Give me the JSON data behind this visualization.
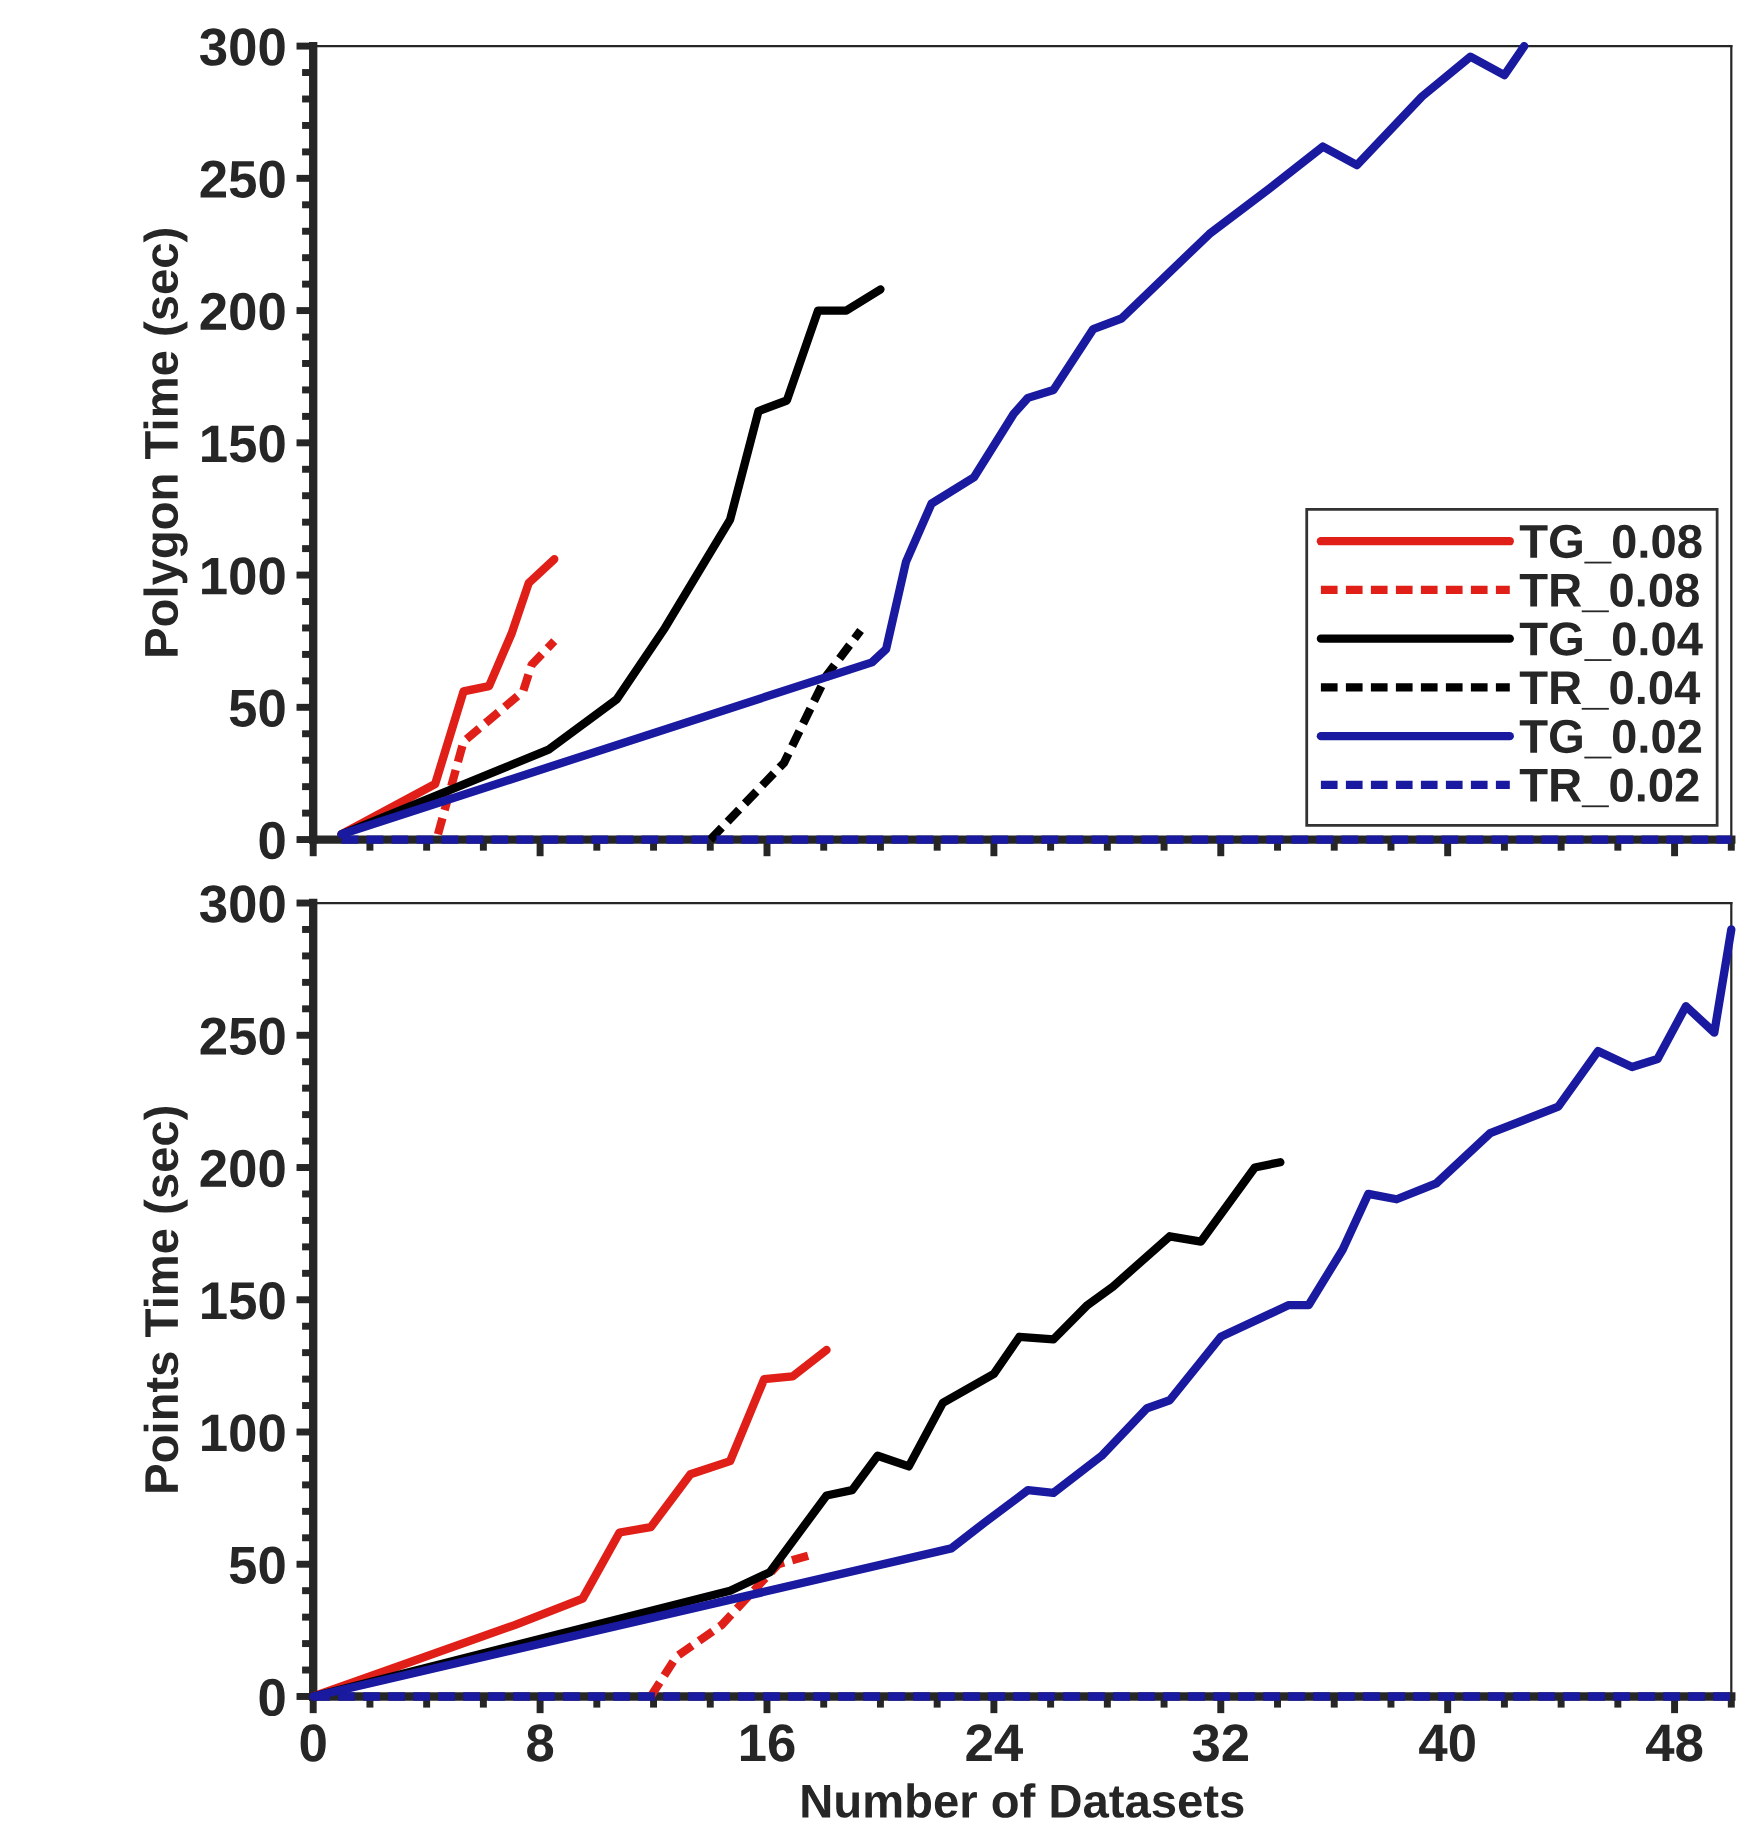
{
  "chart_data": [
    {
      "type": "line",
      "ylabel": "Polygon Time (sec)",
      "xlim": [
        0,
        50
      ],
      "ylim": [
        0,
        300
      ],
      "xticks": [
        0,
        8,
        16,
        24,
        32,
        40,
        48
      ],
      "yticks": [
        0,
        50,
        100,
        150,
        200,
        250,
        300
      ],
      "tick_labels": "y",
      "legend": "bottom right",
      "grid": false,
      "series": [
        {
          "name": "TG_0.08",
          "color": "#e02018",
          "line_style": "solid",
          "x": [
            1,
            4.3,
            5.3,
            6.2,
            7,
            7.6,
            8.5
          ],
          "values": [
            2,
            21,
            56,
            58,
            78,
            97,
            106
          ]
        },
        {
          "name": "TR_0.08",
          "color": "#e02018",
          "line_style": "dashed",
          "x": [
            4.4,
            5.3,
            7.4,
            7.7,
            8.5
          ],
          "values": [
            2,
            37,
            56,
            66,
            75
          ]
        },
        {
          "name": "TG_0.04",
          "color": "#000000",
          "line_style": "solid",
          "x": [
            1,
            8.3,
            10.7,
            12.4,
            14.7,
            15.7,
            16.7,
            17.8,
            18.8,
            20
          ],
          "values": [
            2,
            34,
            53,
            80,
            121,
            162,
            166,
            200,
            200,
            208
          ]
        },
        {
          "name": "TR_0.04",
          "color": "#000000",
          "line_style": "dashed",
          "x": [
            14,
            16.6,
            18.1,
            19.3
          ],
          "values": [
            0,
            29,
            62,
            79
          ]
        },
        {
          "name": "TG_0.02",
          "color": "#1a1aa0",
          "line_style": "solid",
          "x": [
            1,
            19.7,
            20.2,
            20.9,
            21.8,
            23.3,
            24.7,
            25.2,
            26.1,
            27.5,
            28.5,
            31.6,
            33.7,
            35.6,
            36.8,
            39.1,
            40.8,
            42,
            42.7
          ],
          "values": [
            2,
            67,
            72,
            105,
            127,
            137,
            161,
            167,
            170,
            193,
            197,
            229,
            246,
            262,
            255,
            281,
            296,
            289,
            300
          ]
        },
        {
          "name": "TR_0.02",
          "color": "#1a1aa0",
          "line_style": "dashed",
          "x": [
            1,
            50
          ],
          "values": [
            0,
            0
          ]
        }
      ]
    },
    {
      "type": "line",
      "xlabel": "Number of Datasets",
      "ylabel": "Points Time (sec)",
      "xlim": [
        0,
        50
      ],
      "ylim": [
        0,
        300
      ],
      "xticks": [
        0,
        8,
        16,
        24,
        32,
        40,
        48
      ],
      "yticks": [
        0,
        50,
        100,
        150,
        200,
        250,
        300
      ],
      "grid": false,
      "series": [
        {
          "color": "#e02018",
          "line_style": "solid",
          "x": [
            0,
            7.1,
            9.5,
            10.8,
            11.9,
            13.3,
            14.7,
            15.9,
            16.9,
            18.1
          ],
          "values": [
            0,
            27,
            37,
            62,
            64,
            84,
            89,
            120,
            121,
            131
          ]
        },
        {
          "color": "#e02018",
          "line_style": "dashed",
          "x": [
            11.9,
            12.8,
            14.4,
            16.4,
            17.7
          ],
          "values": [
            0,
            15,
            27,
            50,
            54
          ]
        },
        {
          "color": "#000000",
          "line_style": "solid",
          "x": [
            0,
            14.7,
            16.1,
            18.1,
            19,
            19.9,
            21,
            22.2,
            24,
            24.9,
            26.1,
            27.3,
            28.2,
            30.2,
            31.3,
            33.2,
            34.1
          ],
          "values": [
            0,
            40,
            47,
            76,
            78,
            91,
            87,
            111,
            122,
            136,
            135,
            148,
            155,
            174,
            172,
            200,
            202
          ]
        },
        {
          "color": "#1a1aa0",
          "line_style": "solid",
          "x": [
            0,
            22.5,
            23.7,
            25.2,
            26.1,
            27.8,
            29.4,
            30.2,
            32,
            34.4,
            35.1,
            36.3,
            37.2,
            38.2,
            39.6,
            41.5,
            43.9,
            45.3,
            46.5,
            47.4,
            48.4,
            49.4,
            50
          ],
          "values": [
            0,
            56,
            66,
            78,
            77,
            91,
            109,
            112,
            136,
            148,
            148,
            169,
            190,
            188,
            194,
            213,
            223,
            244,
            238,
            241,
            261,
            251,
            290
          ]
        },
        {
          "color": "#1a1aa0",
          "line_style": "dashed",
          "x": [
            0,
            50
          ],
          "values": [
            0,
            0
          ]
        }
      ]
    }
  ]
}
